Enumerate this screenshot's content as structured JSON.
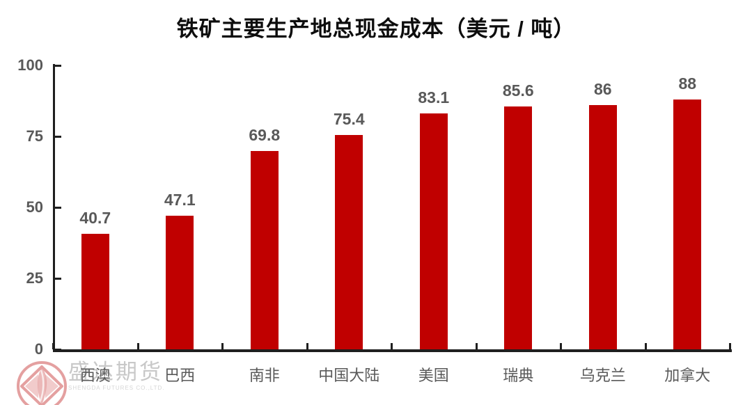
{
  "chart_data": {
    "type": "bar",
    "title": "铁矿主要生产地总现金成本（美元 / 吨）",
    "categories": [
      "西澳",
      "巴西",
      "南非",
      "中国大陆",
      "美国",
      "瑞典",
      "乌克兰",
      "加拿大"
    ],
    "values": [
      40.7,
      47.1,
      69.8,
      75.4,
      83.1,
      85.6,
      86,
      88
    ],
    "value_labels": [
      "40.7",
      "47.1",
      "69.8",
      "75.4",
      "83.1",
      "85.6",
      "86",
      "88"
    ],
    "xlabel": "",
    "ylabel": "",
    "ylim": [
      0,
      100
    ],
    "yticks": [
      0,
      25,
      50,
      75,
      100
    ],
    "grid": false,
    "legend": false,
    "colors": {
      "bar": "#c00000",
      "axis": "#1f1f1f",
      "label": "#595959",
      "title": "#0d0d0d",
      "watermark": "#c8c8c8",
      "logo": "#e09090"
    }
  },
  "watermark": {
    "text": "盛达期货",
    "subtext": "SHENGDA FUTURES CO.,LTD.",
    "logo_icon": "shengda-futures-logo"
  }
}
